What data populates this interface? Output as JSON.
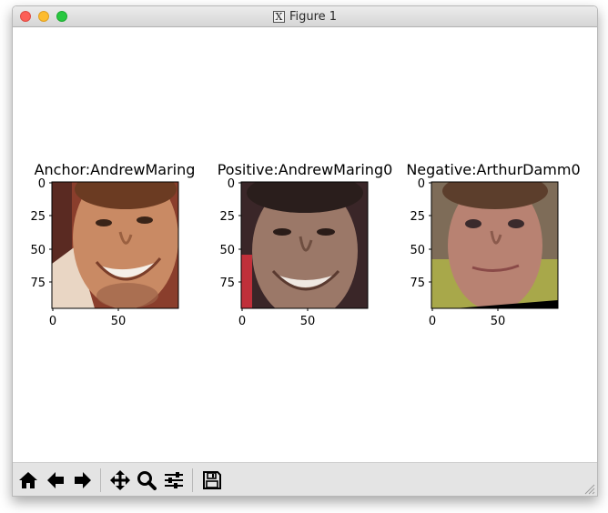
{
  "window": {
    "title": "Figure 1",
    "title_icon": "x11-icon",
    "title_icon_glyph": "X"
  },
  "panels": [
    {
      "title": "Anchor:AndrewMaring",
      "image": "face photo of smiling man with short brown hair and light beard, cropped, warm background",
      "y_ticks": [
        "0",
        "25",
        "50",
        "75"
      ],
      "x_ticks": [
        "0",
        "50"
      ]
    },
    {
      "title": "Positive:AndrewMaring0",
      "image": "face photo of smiling man with dark hair, dark background on sides",
      "y_ticks": [
        "0",
        "25",
        "50",
        "75"
      ],
      "x_ticks": [
        "0",
        "50"
      ]
    },
    {
      "title": "Negative:ArthurDamm0",
      "image": "face photo of man with short brown hair and slight smile, greenish background, black wedge at bottom right",
      "y_ticks": [
        "0",
        "25",
        "50",
        "75"
      ],
      "x_ticks": [
        "0",
        "50"
      ]
    }
  ],
  "toolbar": {
    "buttons": [
      {
        "name": "home-button",
        "icon": "home-icon"
      },
      {
        "name": "back-button",
        "icon": "arrow-left-icon"
      },
      {
        "name": "forward-button",
        "icon": "arrow-right-icon"
      },
      {
        "name": "pan-button",
        "icon": "move-icon"
      },
      {
        "name": "zoom-button",
        "icon": "magnifier-icon"
      },
      {
        "name": "configure-subplots-button",
        "icon": "sliders-icon"
      },
      {
        "name": "save-button",
        "icon": "floppy-disk-icon"
      }
    ]
  },
  "colors": {
    "close": "#fc5f57",
    "minimize": "#fdbc2e",
    "zoom": "#28c840",
    "toolbar_bg": "#e4e4e4"
  }
}
